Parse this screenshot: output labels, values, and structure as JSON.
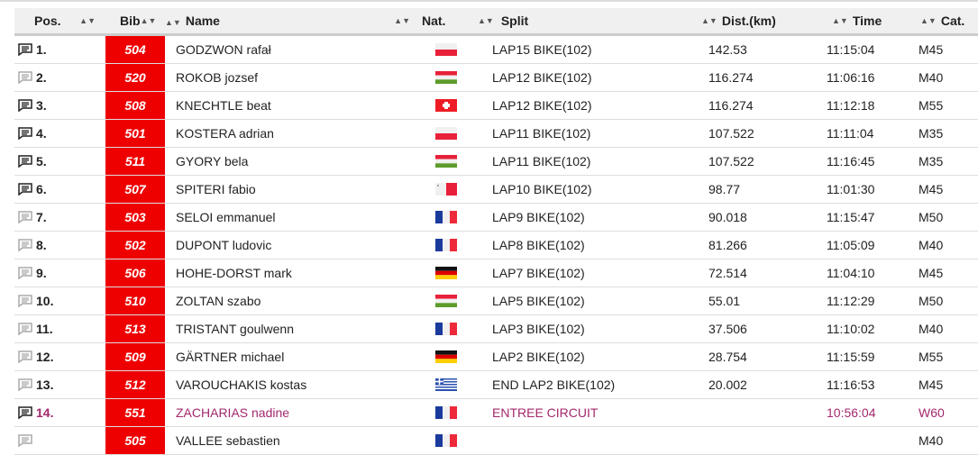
{
  "headers": {
    "pos": "Pos.",
    "bib": "Bib",
    "name": "Name",
    "nat": "Nat.",
    "split": "Split",
    "dist": "Dist.(km)",
    "time": "Time",
    "cat": "Cat."
  },
  "colors": {
    "bib": "#ee0000",
    "highlight": "#a3286c"
  },
  "rows": [
    {
      "pos": "1.",
      "bib": "504",
      "name": "GODZWON rafał",
      "nat": "pl",
      "split": "LAP15 BIKE(102)",
      "dist": "142.53",
      "time": "11:15:04",
      "cat": "M45",
      "comment": "dark"
    },
    {
      "pos": "2.",
      "bib": "520",
      "name": "ROKOB jozsef",
      "nat": "hu",
      "split": "LAP12 BIKE(102)",
      "dist": "116.274",
      "time": "11:06:16",
      "cat": "M40",
      "comment": "light"
    },
    {
      "pos": "3.",
      "bib": "508",
      "name": "KNECHTLE beat",
      "nat": "ch",
      "split": "LAP12 BIKE(102)",
      "dist": "116.274",
      "time": "11:12:18",
      "cat": "M55",
      "comment": "dark"
    },
    {
      "pos": "4.",
      "bib": "501",
      "name": "KOSTERA adrian",
      "nat": "pl",
      "split": "LAP11 BIKE(102)",
      "dist": "107.522",
      "time": "11:11:04",
      "cat": "M35",
      "comment": "dark"
    },
    {
      "pos": "5.",
      "bib": "511",
      "name": "GYORY bela",
      "nat": "hu",
      "split": "LAP11 BIKE(102)",
      "dist": "107.522",
      "time": "11:16:45",
      "cat": "M35",
      "comment": "dark"
    },
    {
      "pos": "6.",
      "bib": "507",
      "name": "SPITERI fabio",
      "nat": "mt",
      "split": "LAP10 BIKE(102)",
      "dist": "98.77",
      "time": "11:01:30",
      "cat": "M45",
      "comment": "dark"
    },
    {
      "pos": "7.",
      "bib": "503",
      "name": "SELOI emmanuel",
      "nat": "fr",
      "split": "LAP9 BIKE(102)",
      "dist": "90.018",
      "time": "11:15:47",
      "cat": "M50",
      "comment": "light"
    },
    {
      "pos": "8.",
      "bib": "502",
      "name": "DUPONT ludovic",
      "nat": "fr",
      "split": "LAP8 BIKE(102)",
      "dist": "81.266",
      "time": "11:05:09",
      "cat": "M40",
      "comment": "light"
    },
    {
      "pos": "9.",
      "bib": "506",
      "name": "HOHE-DORST mark",
      "nat": "de",
      "split": "LAP7 BIKE(102)",
      "dist": "72.514",
      "time": "11:04:10",
      "cat": "M45",
      "comment": "light"
    },
    {
      "pos": "10.",
      "bib": "510",
      "name": "ZOLTAN szabo",
      "nat": "hu",
      "split": "LAP5 BIKE(102)",
      "dist": "55.01",
      "time": "11:12:29",
      "cat": "M50",
      "comment": "light"
    },
    {
      "pos": "11.",
      "bib": "513",
      "name": "TRISTANT goulwenn",
      "nat": "fr",
      "split": "LAP3 BIKE(102)",
      "dist": "37.506",
      "time": "11:10:02",
      "cat": "M40",
      "comment": "light"
    },
    {
      "pos": "12.",
      "bib": "509",
      "name": "GÄRTNER michael",
      "nat": "de",
      "split": "LAP2 BIKE(102)",
      "dist": "28.754",
      "time": "11:15:59",
      "cat": "M55",
      "comment": "light"
    },
    {
      "pos": "13.",
      "bib": "512",
      "name": "VAROUCHAKIS kostas",
      "nat": "gr",
      "split": "END LAP2 BIKE(102)",
      "dist": "20.002",
      "time": "11:16:53",
      "cat": "M45",
      "comment": "light"
    },
    {
      "pos": "14.",
      "bib": "551",
      "name": "ZACHARIAS nadine",
      "nat": "fr",
      "split": "ENTREE CIRCUIT",
      "dist": "",
      "time": "10:56:04",
      "cat": "W60",
      "comment": "dark",
      "highlight": true
    },
    {
      "pos": "",
      "bib": "505",
      "name": "VALLEE sebastien",
      "nat": "fr",
      "split": "",
      "dist": "",
      "time": "",
      "cat": "M40",
      "comment": "light"
    }
  ]
}
